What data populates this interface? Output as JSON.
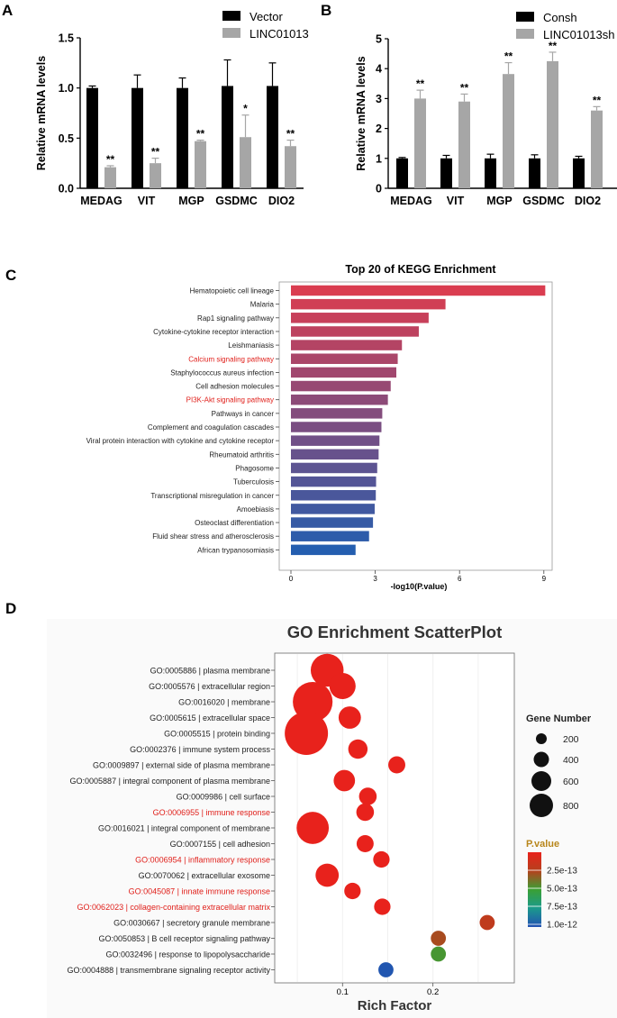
{
  "panels": {
    "A": {
      "label": "A"
    },
    "B": {
      "label": "B"
    },
    "C": {
      "label": "C"
    },
    "D": {
      "label": "D"
    }
  },
  "colors": {
    "black": "#000000",
    "grey": "#a6a6a6",
    "highlight": "#e0201b"
  },
  "chart_data": [
    {
      "id": "A",
      "type": "bar",
      "ylabel": "Relative mRNA levels",
      "ylim": [
        0,
        1.5
      ],
      "yticks": [
        "0.0",
        "0.5",
        "1.0",
        "1.5"
      ],
      "categories": [
        "MEDAG",
        "VIT",
        "MGP",
        "GSDMC",
        "DIO2"
      ],
      "series": [
        {
          "name": "Vector",
          "color": "#000000",
          "values": [
            1.0,
            1.0,
            1.0,
            1.02,
            1.02
          ],
          "errors": [
            0.02,
            0.13,
            0.1,
            0.26,
            0.23
          ]
        },
        {
          "name": "LINC01013",
          "color": "#a6a6a6",
          "values": [
            0.21,
            0.25,
            0.47,
            0.51,
            0.42
          ],
          "errors": [
            0.015,
            0.05,
            0.01,
            0.22,
            0.06
          ]
        }
      ],
      "significance": [
        "**",
        "**",
        "**",
        "*",
        "**"
      ],
      "legend_position": "top-right"
    },
    {
      "id": "B",
      "type": "bar",
      "ylabel": "Relative mRNA levels",
      "ylim": [
        0,
        5
      ],
      "yticks": [
        "0",
        "1",
        "2",
        "3",
        "4",
        "5"
      ],
      "categories": [
        "MEDAG",
        "VIT",
        "MGP",
        "GSDMC",
        "DIO2"
      ],
      "series": [
        {
          "name": "Consh",
          "color": "#000000",
          "values": [
            1.0,
            1.0,
            1.0,
            1.0,
            1.0
          ],
          "errors": [
            0.03,
            0.1,
            0.14,
            0.12,
            0.07
          ]
        },
        {
          "name": "LINC01013sh",
          "color": "#a6a6a6",
          "values": [
            3.0,
            2.9,
            3.82,
            4.25,
            2.6
          ],
          "errors": [
            0.28,
            0.25,
            0.38,
            0.3,
            0.13
          ]
        }
      ],
      "significance": [
        "**",
        "**",
        "**",
        "**",
        "**"
      ],
      "legend_position": "top-right"
    },
    {
      "id": "C",
      "type": "bar",
      "orientation": "horizontal",
      "title": "Top 20 of KEGG Enrichment",
      "xlabel": "-log10(P.value)",
      "xlim": [
        0,
        9.2
      ],
      "xticks": [
        "0",
        "3",
        "6",
        "9"
      ],
      "categories": [
        "Hematopoietic cell lineage",
        "Malaria",
        "Rap1 signaling pathway",
        "Cytokine-cytokine receptor interaction",
        "Leishmaniasis",
        "Calcium signaling pathway",
        "Staphylococcus aureus infection",
        "Cell adhesion molecules",
        "PI3K-Akt signaling pathway",
        "Pathways in cancer",
        "Complement and coagulation cascades",
        "Viral protein interaction with cytokine and cytokine receptor",
        "Rheumatoid arthritis",
        "Phagosome",
        "Tuberculosis",
        "Transcriptional misregulation in cancer",
        "Amoebiasis",
        "Osteoclast differentiation",
        "Fluid shear stress and atherosclerosis",
        "African trypanosomiasis"
      ],
      "values": [
        9.05,
        5.5,
        4.9,
        4.55,
        3.95,
        3.8,
        3.75,
        3.55,
        3.45,
        3.25,
        3.22,
        3.15,
        3.12,
        3.07,
        3.03,
        3.02,
        2.98,
        2.92,
        2.78,
        2.3
      ],
      "highlighted": [
        "Calcium signaling pathway",
        "PI3K-Akt signaling pathway"
      ]
    },
    {
      "id": "D",
      "type": "scatter",
      "title": "GO Enrichment ScatterPlot",
      "xlabel": "Rich Factor",
      "xlim": [
        0.025,
        0.29
      ],
      "xticks": [
        "0.1",
        "0.2"
      ],
      "size_legend_title": "Gene Number",
      "size_legend": [
        "200",
        "400",
        "600",
        "800"
      ],
      "color_legend_title": "P.value",
      "color_legend": [
        "2.5e-13",
        "5.0e-13",
        "7.5e-13",
        "1.0e-12"
      ],
      "points": [
        {
          "term": "GO:0005886 | plasma membrane",
          "x": 0.083,
          "genes": 520,
          "p": 0.0
        },
        {
          "term": "GO:0005576 | extracellular region",
          "x": 0.1,
          "genes": 330,
          "p": 0.0
        },
        {
          "term": "GO:0016020 | membrane",
          "x": 0.067,
          "genes": 760,
          "p": 0.0
        },
        {
          "term": "GO:0005615 | extracellular space",
          "x": 0.108,
          "genes": 240,
          "p": 0.0
        },
        {
          "term": "GO:0005515 | protein binding",
          "x": 0.06,
          "genes": 900,
          "p": 0.0
        },
        {
          "term": "GO:0002376 | immune system process",
          "x": 0.117,
          "genes": 180,
          "p": 0.0
        },
        {
          "term": "GO:0009897 | external side of plasma membrane",
          "x": 0.16,
          "genes": 140,
          "p": 0.0
        },
        {
          "term": "GO:0005887 | integral component of plasma membrane",
          "x": 0.102,
          "genes": 220,
          "p": 0.0
        },
        {
          "term": "GO:0009986 | cell surface",
          "x": 0.128,
          "genes": 150,
          "p": 0.0
        },
        {
          "term": "GO:0006955 | immune response",
          "x": 0.125,
          "genes": 150,
          "p": 0.0
        },
        {
          "term": "GO:0016021 | integral component of membrane",
          "x": 0.067,
          "genes": 500,
          "p": 0.0
        },
        {
          "term": "GO:0007155 | cell adhesion",
          "x": 0.125,
          "genes": 140,
          "p": 0.0
        },
        {
          "term": "GO:0006954 | inflammatory response",
          "x": 0.143,
          "genes": 130,
          "p": 0.0
        },
        {
          "term": "GO:0070062 | extracellular exosome",
          "x": 0.083,
          "genes": 260,
          "p": 0.0
        },
        {
          "term": "GO:0045087 | innate immune response",
          "x": 0.111,
          "genes": 130,
          "p": 0.0
        },
        {
          "term": "GO:0062023 | collagen-containing extracellular matrix",
          "x": 0.144,
          "genes": 130,
          "p": 0.0
        },
        {
          "term": "GO:0030667 | secretory granule membrane",
          "x": 0.26,
          "genes": 110,
          "p": 1.3e-13
        },
        {
          "term": "GO:0050853 | B cell receptor signaling pathway",
          "x": 0.206,
          "genes": 110,
          "p": 1.9e-13
        },
        {
          "term": "GO:0032496 | response to lipopolysaccharide",
          "x": 0.206,
          "genes": 110,
          "p": 4.2e-13
        },
        {
          "term": "GO:0004888 | transmembrane signaling receptor activity",
          "x": 0.148,
          "genes": 110,
          "p": 9.8e-13
        }
      ],
      "highlighted": [
        "GO:0006955 | immune response",
        "GO:0006954 | inflammatory response",
        "GO:0045087 | innate immune response",
        "GO:0062023 | collagen-containing extracellular matrix"
      ]
    }
  ]
}
